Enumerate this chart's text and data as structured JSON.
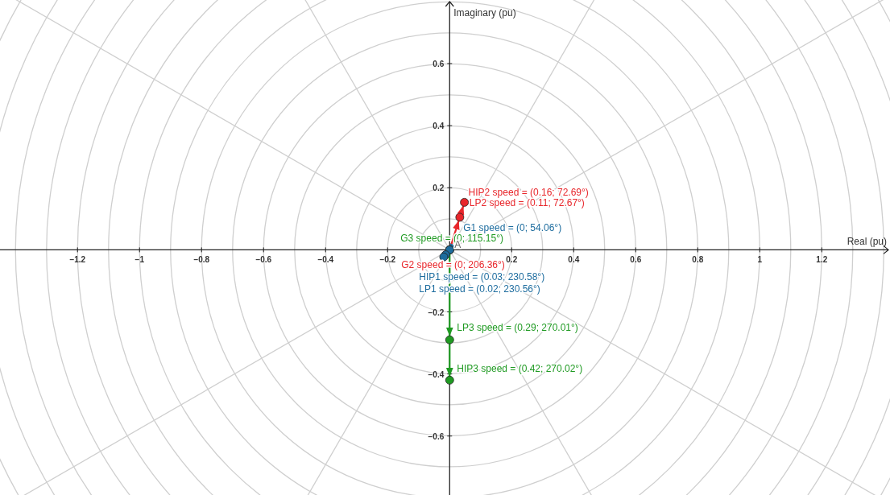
{
  "chart_data": {
    "type": "line",
    "xlabel": "Real (pu)",
    "ylabel": "Imaginary (pu)",
    "xlim": [
      -1.45,
      1.42
    ],
    "ylim": [
      -0.79,
      0.805
    ],
    "xticks": [
      -1.2,
      -1,
      -0.8,
      -0.6,
      -0.4,
      -0.2,
      0.2,
      0.4,
      0.6,
      0.8,
      1,
      1.2
    ],
    "yticks": [
      -0.6,
      -0.4,
      -0.2,
      0.2,
      0.4,
      0.6
    ],
    "marker": "circle",
    "line_style": "solid",
    "series": [
      {
        "color": "#e8262b",
        "x": [
          0,
          0.0327,
          0.0476
        ],
        "values": [
          0,
          0.105,
          0.153
        ]
      },
      {
        "color": "#1f9a22",
        "x": [
          0,
          0,
          0
        ],
        "values": [
          0,
          -0.29,
          -0.42
        ]
      },
      {
        "color": "#1d6c9e",
        "x": [
          0,
          -0.013,
          -0.019
        ],
        "values": [
          0,
          -0.016,
          -0.023
        ]
      }
    ],
    "annotations": [
      {
        "text": "HIP2 speed = (0.16; 72.69°)",
        "x": 0.0476,
        "y": 0.153
      },
      {
        "text": "LP2 speed = (0.11; 72.67°)",
        "x": 0.0327,
        "y": 0.105
      },
      {
        "text": "G1 speed = (0; 54.06°)",
        "x": 0,
        "y": 0
      },
      {
        "text": "G3 speed = (0; 115.15°)",
        "x": 0,
        "y": 0
      },
      {
        "text": "G2 speed = (0; 206.36°)",
        "x": 0,
        "y": 0
      },
      "HIP1 speed = (0.03; 230.58°)",
      "LP1 speed = (0.02; 230.56°)",
      {
        "text": "LP3 speed = (0.29; 270.01°)",
        "x": 0,
        "y": -0.29
      },
      {
        "text": "HIP3 speed = (0.42; 270.02°)",
        "x": 0,
        "y": -0.42
      },
      {
        "text": "A",
        "x": 0,
        "y": 0
      }
    ]
  }
}
